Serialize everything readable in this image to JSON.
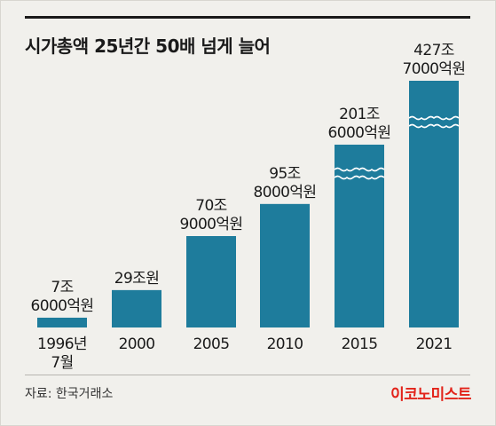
{
  "chart_data": {
    "type": "bar",
    "title": "시가총액 25년간 50배 넘게 늘어",
    "categories": [
      "1996년\n7월",
      "2000",
      "2005",
      "2010",
      "2015",
      "2021"
    ],
    "values": [
      7.6,
      29,
      70.9,
      95.8,
      201.6,
      427.7
    ],
    "unit": "조원",
    "data_labels": [
      "7조\n6000억원",
      "29조원",
      "70조\n9000억원",
      "95조\n8000억원",
      "201조\n6000억원",
      "427조\n7000억원"
    ],
    "broken_bars": [
      false,
      false,
      false,
      false,
      true,
      true
    ],
    "bar_color": "#1e7c9c",
    "grid": false,
    "legend": "none"
  },
  "footer": {
    "source": "자료: 한국거래소",
    "logo": "이코노미스트"
  }
}
